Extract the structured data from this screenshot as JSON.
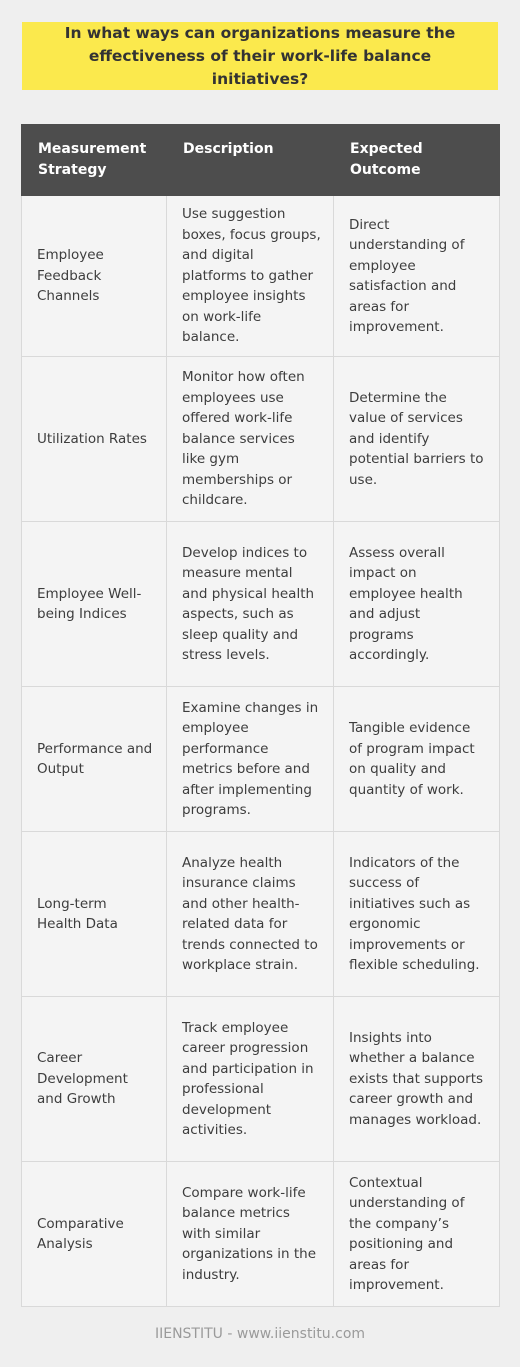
{
  "title": "In what ways can organizations measure the effectiveness of their work-life balance initiatives?",
  "table": {
    "headers": [
      "Measurement Strategy",
      "Description",
      "Expected Outcome"
    ],
    "rows": [
      {
        "strategy": "Employee Feedback Channels",
        "description": "Use suggestion boxes, focus groups, and digital platforms to gather employee insights on work-life balance.",
        "outcome": "Direct understanding of employee satisfaction and areas for improvement."
      },
      {
        "strategy": "Utilization Rates",
        "description": "Monitor how often employees use offered work-life balance services like gym memberships or childcare.",
        "outcome": "Determine the value of services and identify potential barriers to use."
      },
      {
        "strategy": "Employee Well-being Indices",
        "description": "Develop indices to measure mental and physical health aspects, such as sleep quality and stress levels.",
        "outcome": "Assess overall impact on employee health and adjust programs accordingly."
      },
      {
        "strategy": "Performance and Output",
        "description": "Examine changes in employee performance metrics before and after implementing programs.",
        "outcome": "Tangible evidence of program impact on quality and quantity of work."
      },
      {
        "strategy": "Long-term Health Data",
        "description": "Analyze health insurance claims and other health-related data for trends connected to workplace strain.",
        "outcome": "Indicators of the success of initiatives such as ergonomic improvements or flexible scheduling."
      },
      {
        "strategy": "Career Development and Growth",
        "description": "Track employee career progression and participation in professional development activities.",
        "outcome": "Insights into whether a balance exists that supports career growth and manages workload."
      },
      {
        "strategy": "Comparative Analysis",
        "description": "Compare work-life balance metrics with similar organizations in the industry.",
        "outcome": "Contextual understanding of the company’s positioning and areas for improvement."
      }
    ]
  },
  "footer": "IIENSTITU - www.iienstitu.com"
}
